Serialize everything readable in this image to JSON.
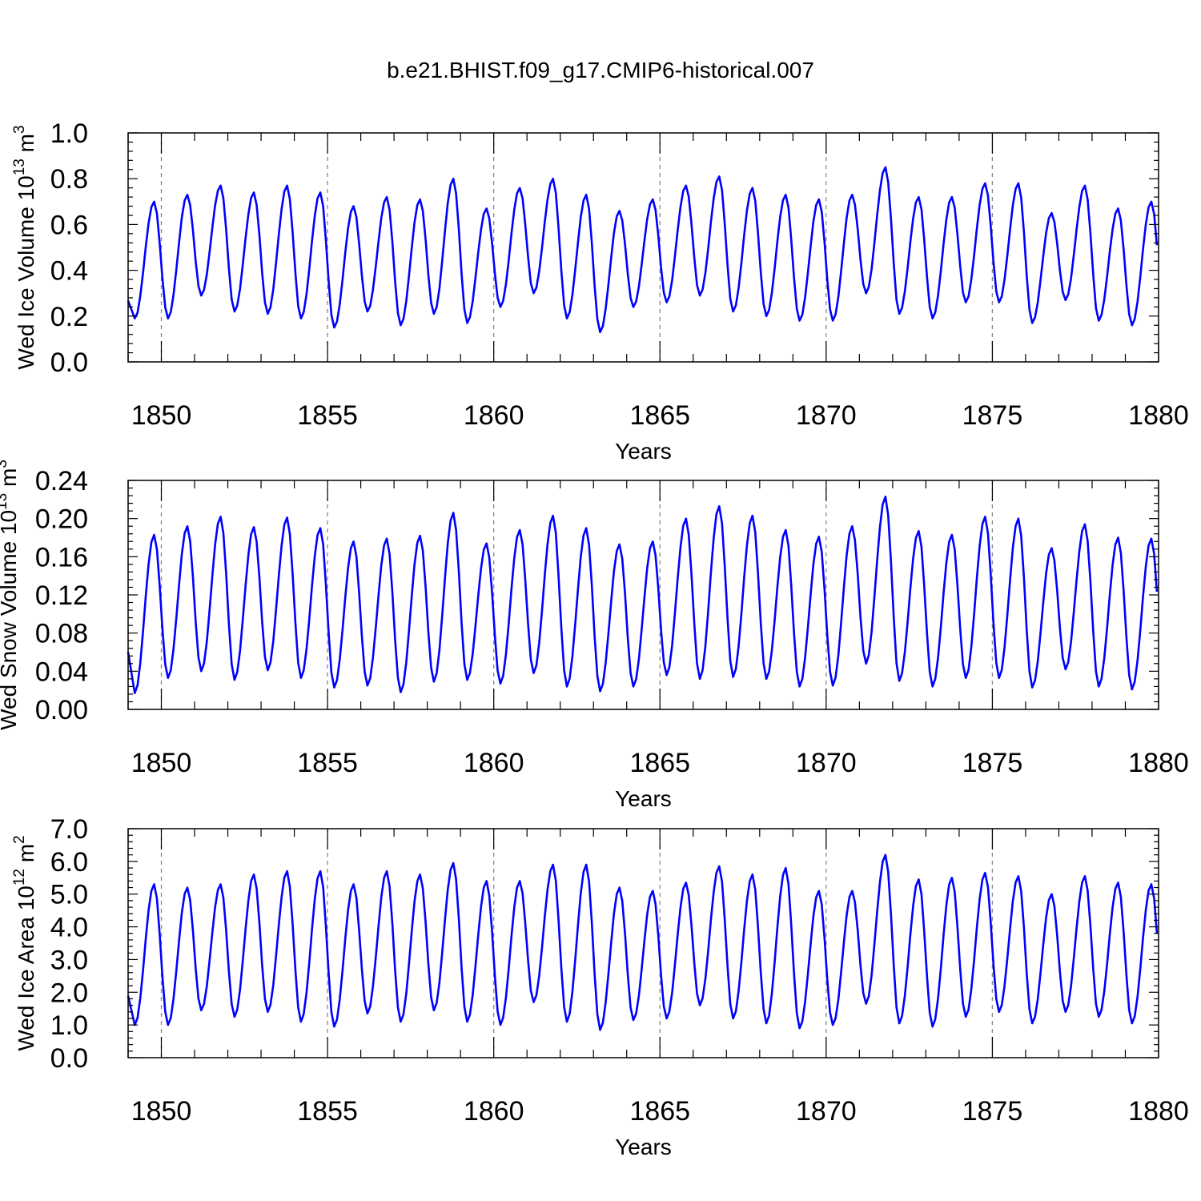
{
  "title": "b.e21.BHIST.f09_g17.CMIP6-historical.007",
  "colors": {
    "series": "#0000ff",
    "frame": "#000000",
    "reference_lines": "#888888"
  },
  "chart_data": [
    {
      "type": "line",
      "ylabel": "Wed Ice Volume",
      "yunit_base": "10",
      "yunit_exp": "13",
      "yunit_tail": " m",
      "yunit_tail_exp": "3",
      "xlabel": "Years",
      "xlim": [
        1849,
        1880
      ],
      "ylim": [
        0.0,
        1.0
      ],
      "xticks": [
        1850,
        1855,
        1860,
        1865,
        1870,
        1875,
        1880
      ],
      "yticks": [
        "0.0",
        "0.2",
        "0.4",
        "0.6",
        "0.8",
        "1.0"
      ],
      "ytick_values": [
        0.0,
        0.2,
        0.4,
        0.6,
        0.8,
        1.0
      ],
      "reference_lines_x": [
        1850,
        1855,
        1860,
        1865,
        1870,
        1875
      ],
      "grid": false,
      "series": [
        {
          "name": "",
          "peaks": [
            0.7,
            0.73,
            0.77,
            0.74,
            0.77,
            0.74,
            0.68,
            0.72,
            0.71,
            0.8,
            0.67,
            0.76,
            0.8,
            0.73,
            0.66,
            0.71,
            0.77,
            0.81,
            0.76,
            0.73,
            0.71,
            0.73,
            0.85,
            0.72,
            0.72,
            0.78,
            0.78,
            0.65,
            0.77,
            0.67,
            0.7
          ],
          "troughs": [
            0.19,
            0.19,
            0.29,
            0.22,
            0.21,
            0.19,
            0.15,
            0.22,
            0.16,
            0.21,
            0.17,
            0.24,
            0.3,
            0.19,
            0.13,
            0.24,
            0.26,
            0.29,
            0.22,
            0.2,
            0.18,
            0.18,
            0.3,
            0.21,
            0.19,
            0.26,
            0.26,
            0.17,
            0.27,
            0.18,
            0.16
          ]
        }
      ]
    },
    {
      "type": "line",
      "ylabel": "Wed Snow Volume",
      "yunit_base": "10",
      "yunit_exp": "13",
      "yunit_tail": " m",
      "yunit_tail_exp": "3",
      "xlabel": "Years",
      "xlim": [
        1849,
        1880
      ],
      "ylim": [
        0.0,
        0.24
      ],
      "xticks": [
        1850,
        1855,
        1860,
        1865,
        1870,
        1875,
        1880
      ],
      "yticks": [
        "0.00",
        "0.04",
        "0.08",
        "0.12",
        "0.16",
        "0.20",
        "0.24"
      ],
      "ytick_values": [
        0.0,
        0.04,
        0.08,
        0.12,
        0.16,
        0.2,
        0.24
      ],
      "reference_lines_x": [
        1850,
        1855,
        1860,
        1865,
        1870,
        1875
      ],
      "grid": false,
      "series": [
        {
          "name": "",
          "peaks": [
            0.183,
            0.192,
            0.202,
            0.191,
            0.201,
            0.19,
            0.176,
            0.179,
            0.182,
            0.206,
            0.174,
            0.188,
            0.203,
            0.19,
            0.173,
            0.176,
            0.2,
            0.213,
            0.203,
            0.188,
            0.181,
            0.192,
            0.223,
            0.187,
            0.183,
            0.202,
            0.2,
            0.169,
            0.194,
            0.18,
            0.179
          ],
          "troughs": [
            0.017,
            0.033,
            0.04,
            0.031,
            0.041,
            0.033,
            0.023,
            0.025,
            0.018,
            0.029,
            0.031,
            0.027,
            0.038,
            0.024,
            0.019,
            0.024,
            0.036,
            0.032,
            0.034,
            0.032,
            0.024,
            0.025,
            0.048,
            0.03,
            0.024,
            0.033,
            0.033,
            0.023,
            0.042,
            0.024,
            0.021
          ]
        }
      ]
    },
    {
      "type": "line",
      "ylabel": "Wed Ice Area",
      "yunit_base": "10",
      "yunit_exp": "12",
      "yunit_tail": " m",
      "yunit_tail_exp": "2",
      "xlabel": "Years",
      "xlim": [
        1849,
        1880
      ],
      "ylim": [
        0.0,
        7.0
      ],
      "xticks": [
        1850,
        1855,
        1860,
        1865,
        1870,
        1875,
        1880
      ],
      "yticks": [
        "0.0",
        "1.0",
        "2.0",
        "3.0",
        "4.0",
        "5.0",
        "6.0",
        "7.0"
      ],
      "ytick_values": [
        0.0,
        1.0,
        2.0,
        3.0,
        4.0,
        5.0,
        6.0,
        7.0
      ],
      "reference_lines_x": [
        1850,
        1855,
        1860,
        1865,
        1870,
        1875
      ],
      "grid": false,
      "series": [
        {
          "name": "",
          "peaks": [
            5.3,
            5.2,
            5.3,
            5.6,
            5.7,
            5.7,
            5.3,
            5.7,
            5.6,
            5.95,
            5.4,
            5.4,
            5.9,
            5.9,
            5.2,
            5.1,
            5.35,
            5.85,
            5.6,
            5.8,
            5.1,
            5.1,
            6.2,
            5.45,
            5.5,
            5.65,
            5.55,
            5.0,
            5.55,
            5.35,
            5.3
          ],
          "troughs": [
            1.0,
            1.0,
            1.45,
            1.25,
            1.4,
            1.1,
            0.95,
            1.35,
            1.1,
            1.45,
            1.1,
            1.0,
            1.7,
            1.1,
            0.85,
            1.15,
            1.2,
            1.6,
            1.2,
            1.05,
            0.9,
            1.0,
            1.65,
            1.05,
            0.95,
            1.25,
            1.4,
            1.05,
            1.4,
            1.25,
            1.05
          ]
        }
      ]
    }
  ]
}
